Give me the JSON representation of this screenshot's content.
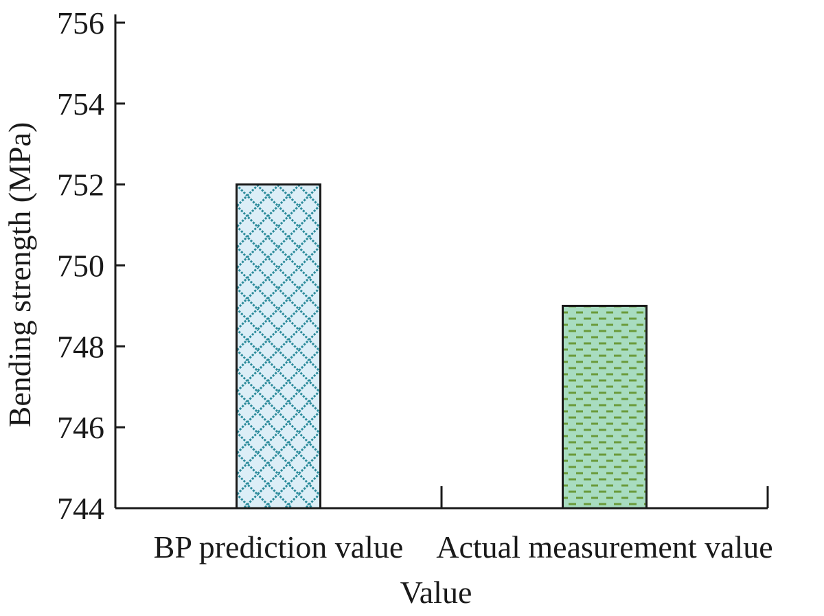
{
  "chart_data": {
    "type": "bar",
    "categories": [
      "BP prediction value",
      "Actual measurement value"
    ],
    "values": [
      752,
      749
    ],
    "title": "",
    "xlabel": "Value",
    "ylabel": "Bending strength (MPa)",
    "ylim": [
      744,
      756
    ],
    "yticks": [
      744,
      746,
      748,
      750,
      752,
      754,
      756
    ],
    "grid": false,
    "legend": "none",
    "bar_fills": [
      {
        "background": "#dceef7",
        "pattern_color": "#2a8a9a",
        "pattern": "diamond-lattice"
      },
      {
        "background": "#a8dcc0",
        "pattern_color": "#6a9a3a",
        "pattern": "dashes"
      }
    ],
    "colors": {
      "axis": "#1a1a1a",
      "bar_outline": "#1a1a1a"
    }
  }
}
